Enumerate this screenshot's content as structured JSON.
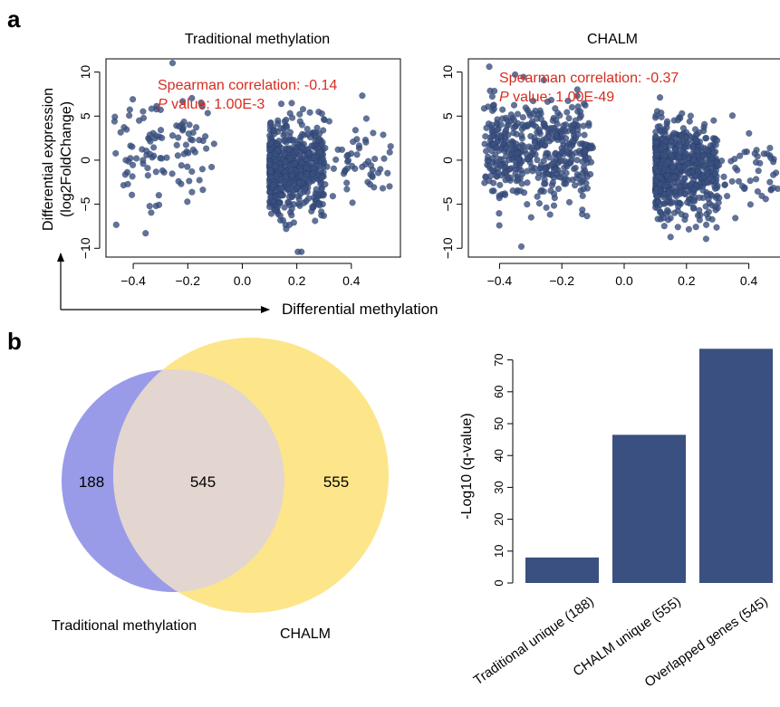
{
  "panel_labels": {
    "a": "a",
    "b": "b"
  },
  "shared_axes": {
    "ylabel_line1": "Differential expression",
    "ylabel_line2": "(log2FoldChange)",
    "xlabel": "Differential methylation"
  },
  "colors": {
    "points": "#3a5080",
    "points_edge": "#17264e",
    "annotation": "#d62d20",
    "bar": "#3a5080",
    "venn_left": "#9a9be8",
    "venn_right": "#fde68a",
    "venn_overlap": "#e3d6d0"
  },
  "chart_data": [
    {
      "type": "scatter",
      "title": "Traditional methylation",
      "xlabel": "Differential methylation",
      "ylabel": "Differential expression (log2FoldChange)",
      "xlim": [
        -0.5,
        0.58
      ],
      "ylim": [
        -11,
        11.5
      ],
      "xticks": [
        "-0.4",
        "-0.2",
        "0.0",
        "0.2",
        "0.4"
      ],
      "xtick_values": [
        -0.4,
        -0.2,
        0.0,
        0.2,
        0.4
      ],
      "yticks": [
        "-10",
        "-5",
        "0",
        "5",
        "10"
      ],
      "ytick_values": [
        -10,
        -5,
        0,
        5,
        10
      ],
      "annotation_line1": "Spearman correlation: -0.14",
      "annotation_p": "P",
      "annotation_line2": " value: 1.00E-3",
      "clusters": [
        {
          "x_range": [
            -0.47,
            -0.1
          ],
          "y_center": 1.5,
          "y_sd": 3.2,
          "n": 110
        },
        {
          "x_range": [
            0.1,
            0.3
          ],
          "y_center": -0.8,
          "y_sd": 2.6,
          "n": 620
        },
        {
          "x_range": [
            0.28,
            0.55
          ],
          "y_center": -0.3,
          "y_sd": 2.4,
          "n": 60
        }
      ]
    },
    {
      "type": "scatter",
      "title": "CHALM",
      "xlabel": "Differential methylation",
      "ylabel": "",
      "xlim": [
        -0.5,
        0.5
      ],
      "ylim": [
        -11,
        11.5
      ],
      "xticks": [
        "-0.4",
        "-0.2",
        "0.0",
        "0.2",
        "0.4"
      ],
      "xtick_values": [
        -0.4,
        -0.2,
        0.0,
        0.2,
        0.4
      ],
      "yticks": [
        "-10",
        "-5",
        "0",
        "5",
        "10"
      ],
      "ytick_values": [
        -10,
        -5,
        0,
        5,
        10
      ],
      "annotation_line1": "Spearman correlation: -0.37",
      "annotation_p": "P",
      "annotation_line2": " value: 1.00E-49",
      "clusters": [
        {
          "x_range": [
            -0.45,
            -0.1
          ],
          "y_center": 1.0,
          "y_sd": 2.8,
          "n": 480
        },
        {
          "x_range": [
            0.1,
            0.3
          ],
          "y_center": -0.9,
          "y_sd": 2.5,
          "n": 640
        },
        {
          "x_range": [
            0.28,
            0.5
          ],
          "y_center": -1.0,
          "y_sd": 2.3,
          "n": 60
        }
      ]
    },
    {
      "type": "venn",
      "sets": [
        {
          "name": "Traditional methylation",
          "unique": 188
        },
        {
          "name": "CHALM",
          "unique": 555
        }
      ],
      "overlap": 545,
      "labels": {
        "left": "188",
        "overlap": "545",
        "right": "555"
      }
    },
    {
      "type": "bar",
      "categories": [
        "Traditional unique (188)",
        "CHALM unique (555)",
        "Overlapped genes (545)"
      ],
      "values": [
        8,
        46.5,
        73.5
      ],
      "ylabel": "-Log10 (q-value)",
      "ylim": [
        0,
        75
      ],
      "yticks": [
        "0",
        "10",
        "20",
        "30",
        "40",
        "50",
        "60",
        "70"
      ],
      "ytick_values": [
        0,
        10,
        20,
        30,
        40,
        50,
        60,
        70
      ]
    }
  ]
}
